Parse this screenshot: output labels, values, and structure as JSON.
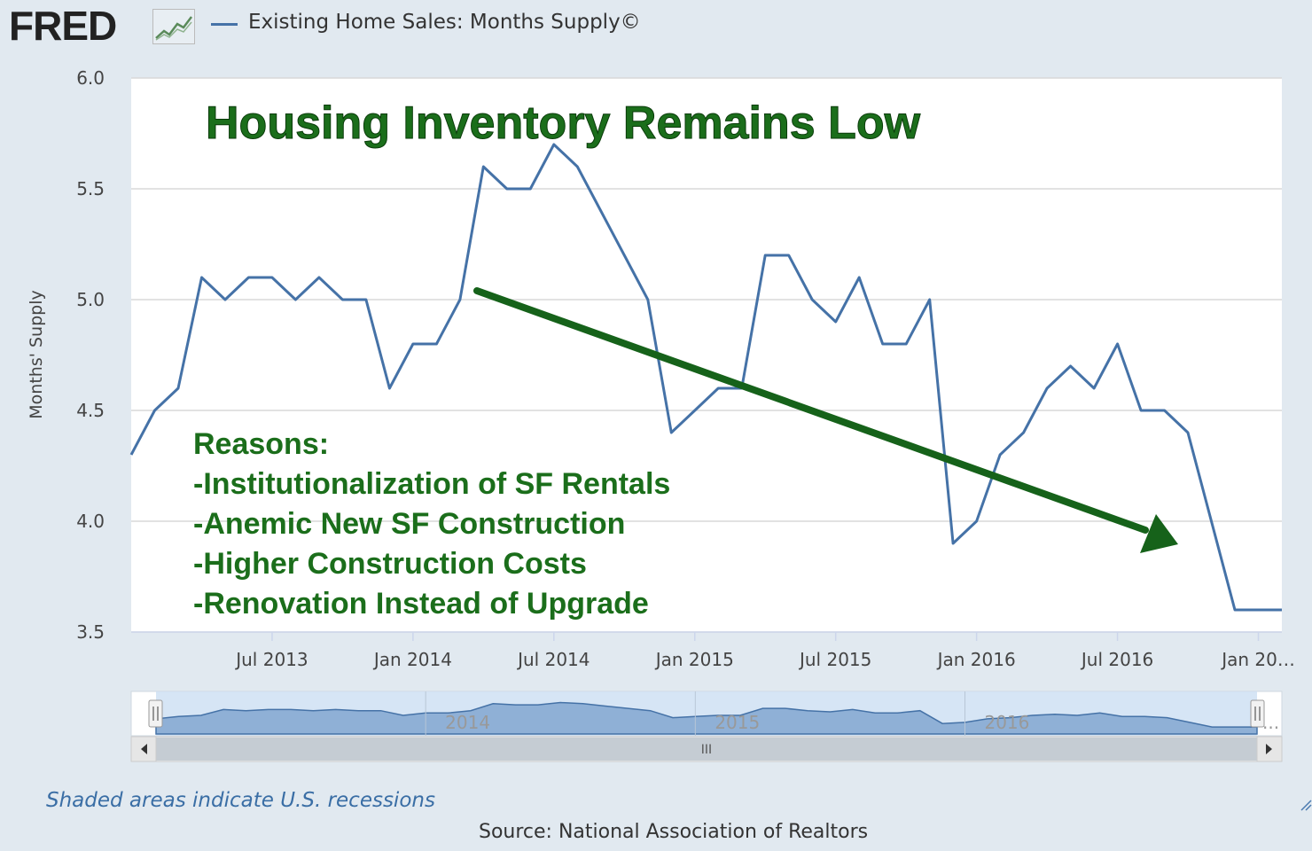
{
  "header": {
    "logo_text": "FRED",
    "series_title": "Existing Home Sales: Months Supply©"
  },
  "colors": {
    "series": "#4572a7",
    "annotation": "#1b6e1b",
    "arrow": "#16621a",
    "background": "#e1e9f0"
  },
  "chart_data": {
    "type": "line",
    "title": "Existing Home Sales: Months Supply©",
    "ylabel": "Months' Supply",
    "xlabel": "",
    "ylim": [
      3.5,
      6.0
    ],
    "y_ticks": [
      "3.5",
      "4.0",
      "4.5",
      "5.0",
      "5.5",
      "6.0"
    ],
    "x_ticks": [
      {
        "label": "Jul 2013",
        "index": 6
      },
      {
        "label": "Jan 2014",
        "index": 12
      },
      {
        "label": "Jul 2014",
        "index": 18
      },
      {
        "label": "Jan 2015",
        "index": 24
      },
      {
        "label": "Jul 2015",
        "index": 30
      },
      {
        "label": "Jan 2016",
        "index": 36
      },
      {
        "label": "Jul 2016",
        "index": 42
      },
      {
        "label": "Jan 20…",
        "index": 48
      }
    ],
    "x_start": "Jan 2013",
    "x_end": "Jan 2017",
    "grid": true,
    "series": [
      {
        "name": "Existing Home Sales: Months Supply",
        "values": [
          4.3,
          4.5,
          4.6,
          5.1,
          5.0,
          5.1,
          5.1,
          5.0,
          5.1,
          5.0,
          5.0,
          4.6,
          4.8,
          4.8,
          5.0,
          5.6,
          5.5,
          5.5,
          5.7,
          5.6,
          5.4,
          5.2,
          5.0,
          4.4,
          4.5,
          4.6,
          4.6,
          5.2,
          5.2,
          5.0,
          4.9,
          5.1,
          4.8,
          4.8,
          5.0,
          3.9,
          4.0,
          4.3,
          4.4,
          4.6,
          4.7,
          4.6,
          4.8,
          4.5,
          4.5,
          4.4,
          4.0,
          3.6,
          3.6,
          3.6
        ]
      }
    ],
    "annotation": {
      "title": "Housing Inventory Remains Low",
      "reasons": [
        "Reasons:",
        "-Institutionalization of SF Rentals",
        "-Anemic New SF Construction",
        "-Higher Construction Costs",
        "-Renovation Instead of Upgrade"
      ],
      "arrow": "trend arrow pointing down-right from mid-2014 to late 2016"
    },
    "navigator": {
      "year_labels": [
        "2014",
        "2015",
        "2016"
      ],
      "scrollbar_grip": "III",
      "ellipsis": "..."
    }
  },
  "footer": {
    "recession_note": "Shaded areas indicate U.S. recessions",
    "source": "Source: National Association of Realtors"
  }
}
